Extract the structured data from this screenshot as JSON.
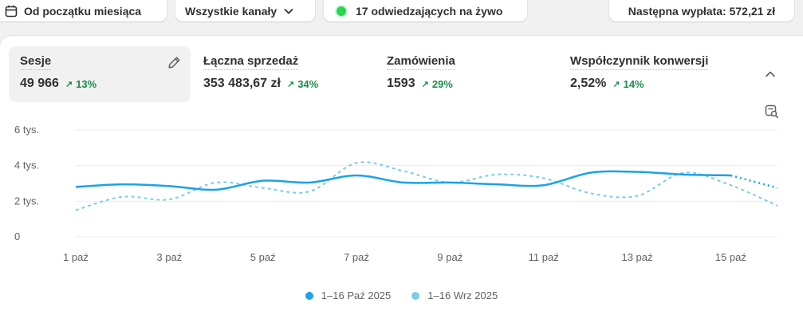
{
  "toolbar": {
    "date_range": "Od początku miesiąca",
    "channels": "Wszystkie kanały",
    "live_visitors": "17 odwiedzających na żywo",
    "next_payout": "Następna wypłata: 572,21 zł"
  },
  "metrics": [
    {
      "label": "Sesje",
      "value": "49 966",
      "delta": "13%"
    },
    {
      "label": "Łączna sprzedaż",
      "value": "353 483,67 zł",
      "delta": "34%"
    },
    {
      "label": "Zamówienia",
      "value": "1593",
      "delta": "29%"
    },
    {
      "label": "Współczynnik konwersji",
      "value": "2,52%",
      "delta": "14%"
    }
  ],
  "colors": {
    "current": "#1aa3e8",
    "previous": "#7ccbef",
    "positive": "#1f8a4c",
    "live": "#29d64e"
  },
  "icons": [
    "calendar-icon",
    "chevron-down-icon",
    "pencil-icon",
    "chevron-up-icon",
    "chart-search-icon"
  ],
  "chart_data": {
    "type": "line",
    "x": [
      "1 paź",
      "2 paź",
      "3 paź",
      "4 paź",
      "5 paź",
      "6 paź",
      "7 paź",
      "8 paź",
      "9 paź",
      "10 paź",
      "11 paź",
      "12 paź",
      "13 paź",
      "14 paź",
      "15 paź",
      "16 paź"
    ],
    "tick_labels": [
      "1 paź",
      "3 paź",
      "5 paź",
      "7 paź",
      "9 paź",
      "11 paź",
      "13 paź",
      "15 paź"
    ],
    "y_tick_labels": [
      "0",
      "2 tys.",
      "4 tys.",
      "6 tys."
    ],
    "ylim": [
      0,
      6000
    ],
    "grid": true,
    "legend_position": "bottom",
    "series": [
      {
        "name": "1–16 Paź 2025",
        "values": [
          2800,
          2950,
          2850,
          2650,
          3150,
          3050,
          3450,
          3050,
          3050,
          2950,
          2900,
          3600,
          3650,
          3500,
          3450,
          2750
        ],
        "dotted_from_index": 14
      },
      {
        "name": "1–16 Wrz 2025",
        "values": [
          1500,
          2250,
          2100,
          3050,
          2750,
          2550,
          4150,
          3700,
          3050,
          3500,
          3300,
          2450,
          2300,
          3600,
          2900,
          1750
        ]
      }
    ]
  }
}
